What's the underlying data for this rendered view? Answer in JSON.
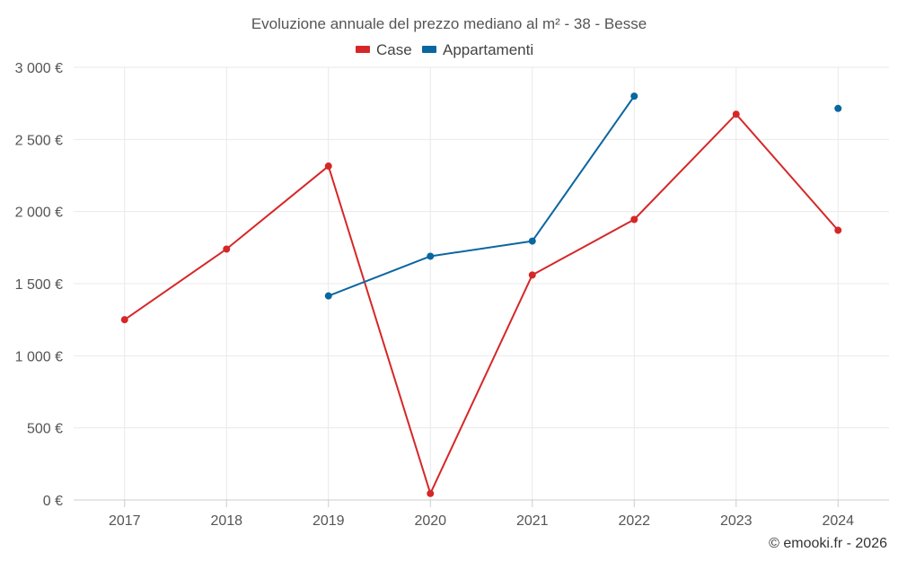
{
  "chart_data": {
    "type": "line",
    "title": "Evoluzione annuale del prezzo mediano al m² - 38 - Besse",
    "categories": [
      "2017",
      "2018",
      "2019",
      "2020",
      "2021",
      "2022",
      "2023",
      "2024"
    ],
    "ylim": [
      0,
      3000
    ],
    "yticks": [
      0,
      500,
      1000,
      1500,
      2000,
      2500,
      3000
    ],
    "ytick_labels": [
      "0 €",
      "500 €",
      "1 000 €",
      "1 500 €",
      "2 000 €",
      "2 500 €",
      "3 000 €"
    ],
    "grid": true,
    "legend_position": "top-center",
    "series": [
      {
        "name": "Case",
        "color": "#d62728",
        "values": [
          1250,
          1740,
          2315,
          45,
          1560,
          1945,
          2675,
          1870
        ]
      },
      {
        "name": "Appartamenti",
        "color": "#0a66a0",
        "values": [
          null,
          null,
          1415,
          1690,
          1795,
          2800,
          null,
          2715
        ]
      }
    ],
    "credit": "© emooki.fr - 2026"
  }
}
